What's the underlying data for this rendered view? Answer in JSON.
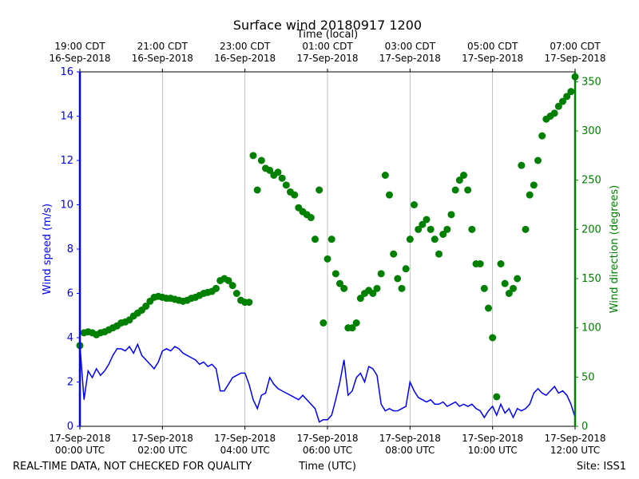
{
  "chart_data": {
    "type": "line",
    "title": "Surface wind 20180917 1200",
    "x2label": "Time (local)",
    "xlabel": "Time (UTC)",
    "ylabel": "Wind speed (m/s)",
    "y2label": "Wind direction (degrees)",
    "footer_left": "REAL-TIME DATA, NOT CHECKED FOR QUALITY",
    "footer_right": "Site: ISS1",
    "grid": true,
    "xlim": [
      0,
      12
    ],
    "xticks": [
      {
        "value": 0,
        "label": "17-Sep-2018\n00:00 UTC"
      },
      {
        "value": 2,
        "label": "17-Sep-2018\n02:00 UTC"
      },
      {
        "value": 4,
        "label": "17-Sep-2018\n04:00 UTC"
      },
      {
        "value": 6,
        "label": "17-Sep-2018\n06:00 UTC"
      },
      {
        "value": 8,
        "label": "17-Sep-2018\n08:00 UTC"
      },
      {
        "value": 10,
        "label": "17-Sep-2018\n10:00 UTC"
      },
      {
        "value": 12,
        "label": "17-Sep-2018\n12:00 UTC"
      }
    ],
    "x2ticks": [
      {
        "value": 0,
        "label": "19:00 CDT\n16-Sep-2018"
      },
      {
        "value": 2,
        "label": "21:00 CDT\n16-Sep-2018"
      },
      {
        "value": 4,
        "label": "23:00 CDT\n16-Sep-2018"
      },
      {
        "value": 6,
        "label": "01:00 CDT\n17-Sep-2018"
      },
      {
        "value": 8,
        "label": "03:00 CDT\n17-Sep-2018"
      },
      {
        "value": 10,
        "label": "05:00 CDT\n17-Sep-2018"
      },
      {
        "value": 12,
        "label": "07:00 CDT\n17-Sep-2018"
      }
    ],
    "ylim": [
      0,
      16
    ],
    "yticks": [
      0,
      2,
      4,
      6,
      8,
      10,
      12,
      14,
      16
    ],
    "y2lim": [
      0,
      360
    ],
    "y2ticks": [
      0,
      50,
      100,
      150,
      200,
      250,
      300,
      350
    ],
    "x": [
      0.0,
      0.1,
      0.2,
      0.3,
      0.4,
      0.5,
      0.6,
      0.7,
      0.8,
      0.9,
      1.0,
      1.1,
      1.2,
      1.3,
      1.4,
      1.5,
      1.6,
      1.7,
      1.8,
      1.9,
      2.0,
      2.1,
      2.2,
      2.3,
      2.4,
      2.5,
      2.6,
      2.7,
      2.8,
      2.9,
      3.0,
      3.1,
      3.2,
      3.3,
      3.4,
      3.5,
      3.6,
      3.7,
      3.8,
      3.9,
      4.0,
      4.1,
      4.2,
      4.3,
      4.4,
      4.5,
      4.6,
      4.7,
      4.8,
      4.9,
      5.0,
      5.1,
      5.2,
      5.3,
      5.4,
      5.5,
      5.6,
      5.7,
      5.8,
      5.9,
      6.0,
      6.1,
      6.2,
      6.3,
      6.4,
      6.5,
      6.6,
      6.7,
      6.8,
      6.9,
      7.0,
      7.1,
      7.2,
      7.3,
      7.4,
      7.5,
      7.6,
      7.7,
      7.8,
      7.9,
      8.0,
      8.1,
      8.2,
      8.3,
      8.4,
      8.5,
      8.6,
      8.7,
      8.8,
      8.9,
      9.0,
      9.1,
      9.2,
      9.3,
      9.4,
      9.5,
      9.6,
      9.7,
      9.8,
      9.9,
      10.0,
      10.1,
      10.2,
      10.3,
      10.4,
      10.5,
      10.6,
      10.7,
      10.8,
      10.9,
      11.0,
      11.1,
      11.2,
      11.3,
      11.4,
      11.5,
      11.6,
      11.7,
      11.8,
      11.9,
      12.0
    ],
    "series": [
      {
        "type": "line",
        "color": "#0000ff",
        "values": [
          3.7,
          1.2,
          2.5,
          2.2,
          2.6,
          2.3,
          2.5,
          2.8,
          3.2,
          3.5,
          3.5,
          3.4,
          3.6,
          3.3,
          3.7,
          3.2,
          3.0,
          2.8,
          2.6,
          2.9,
          3.4,
          3.5,
          3.4,
          3.6,
          3.5,
          3.3,
          3.2,
          3.1,
          3.0,
          2.8,
          2.9,
          2.7,
          2.8,
          2.6,
          1.6,
          1.6,
          1.9,
          2.2,
          2.3,
          2.4,
          2.4,
          1.9,
          1.2,
          0.8,
          1.4,
          1.5,
          2.2,
          1.9,
          1.7,
          1.6,
          1.5,
          1.4,
          1.3,
          1.2,
          1.4,
          1.2,
          1.0,
          0.8,
          0.2,
          0.3,
          0.3,
          0.5,
          1.2,
          2.0,
          3.0,
          1.4,
          1.6,
          2.2,
          2.4,
          2.0,
          2.7,
          2.6,
          2.3,
          1.0,
          0.7,
          0.8,
          0.7,
          0.7,
          0.8,
          0.9,
          2.0,
          1.6,
          1.3,
          1.2,
          1.1,
          1.2,
          1.0,
          1.0,
          1.1,
          0.9,
          1.0,
          1.1,
          0.9,
          1.0,
          0.9,
          1.0,
          0.8,
          0.7,
          0.4,
          0.7,
          0.9,
          0.5,
          1.0,
          0.6,
          0.8,
          0.4,
          0.8,
          0.7,
          0.8,
          1.0,
          1.5,
          1.7,
          1.5,
          1.4,
          1.6,
          1.8,
          1.5,
          1.6,
          1.4,
          1.0,
          0.4
        ]
      },
      {
        "type": "scatter",
        "color": "#008000",
        "axis": "y2",
        "values": [
          82,
          95,
          96,
          95,
          93,
          95,
          96,
          98,
          100,
          102,
          105,
          106,
          108,
          112,
          115,
          118,
          122,
          127,
          131,
          132,
          131,
          130,
          130,
          129,
          128,
          127,
          128,
          130,
          131,
          133,
          135,
          136,
          137,
          140,
          148,
          150,
          148,
          143,
          135,
          128,
          126,
          126,
          275,
          240,
          270,
          262,
          260,
          255,
          258,
          252,
          245,
          238,
          235,
          222,
          218,
          215,
          212,
          190,
          240,
          105,
          170,
          190,
          155,
          145,
          140,
          100,
          100,
          105,
          130,
          135,
          138,
          135,
          140,
          155,
          255,
          235,
          175,
          150,
          140,
          160,
          190,
          225,
          200,
          205,
          210,
          200,
          190,
          175,
          195,
          200,
          215,
          240,
          250,
          255,
          240,
          200,
          165,
          165,
          140,
          120,
          90,
          30,
          165,
          145,
          135,
          140,
          150,
          265,
          200,
          235,
          245,
          270,
          295,
          312,
          315,
          318,
          325,
          330,
          335,
          340,
          355
        ]
      }
    ]
  }
}
